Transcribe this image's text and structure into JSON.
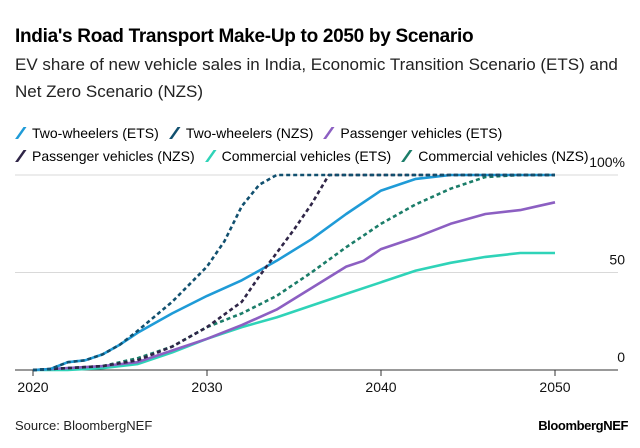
{
  "chart_data": {
    "type": "line",
    "title": "India's Road Transport Make-Up to 2050 by Scenario",
    "subtitle": "EV share of new vehicle sales in India, Economic Transition Scenario (ETS) and Net Zero Scenario (NZS)",
    "xlabel": "",
    "ylabel": "",
    "xlim": [
      2020,
      2053
    ],
    "ylim": [
      0,
      100
    ],
    "x_ticks": [
      "2020",
      "2030",
      "2040",
      "2050"
    ],
    "y_ticks": [
      "0",
      "50",
      "100%"
    ],
    "y_tick_values": [
      0,
      50,
      100
    ],
    "grid": true,
    "legend_position": "top-left",
    "series": [
      {
        "name": "Two-wheelers (ETS)",
        "color": "#1f9bd7",
        "dashed": false,
        "x": [
          2020,
          2021,
          2022,
          2023,
          2024,
          2025,
          2026,
          2028,
          2030,
          2032,
          2033,
          2034,
          2036,
          2038,
          2040,
          2042,
          2044,
          2046,
          2048,
          2050
        ],
        "y": [
          0,
          0.5,
          4,
          5,
          8,
          13,
          19,
          29,
          38,
          46,
          51,
          56,
          67,
          80,
          92,
          98,
          100,
          100,
          100,
          100
        ]
      },
      {
        "name": "Two-wheelers (NZS)",
        "color": "#11506f",
        "dashed": true,
        "x": [
          2020,
          2021,
          2022,
          2023,
          2024,
          2025,
          2026,
          2028,
          2030,
          2031,
          2032,
          2033,
          2034,
          2036,
          2040,
          2045,
          2050
        ],
        "y": [
          0,
          0.5,
          4,
          5,
          8,
          13,
          20,
          35,
          53,
          66,
          84,
          95,
          100,
          100,
          100,
          100,
          100
        ]
      },
      {
        "name": "Passenger vehicles (ETS)",
        "color": "#8c5fc2",
        "dashed": false,
        "x": [
          2020,
          2022,
          2024,
          2026,
          2028,
          2030,
          2032,
          2034,
          2036,
          2038,
          2039,
          2040,
          2042,
          2044,
          2046,
          2048,
          2049,
          2050
        ],
        "y": [
          0,
          1,
          2,
          4,
          10,
          16,
          23,
          31,
          42,
          53,
          56,
          62,
          68,
          75,
          80,
          82,
          84,
          86
        ]
      },
      {
        "name": "Passenger vehicles (NZS)",
        "color": "#2f2547",
        "dashed": true,
        "x": [
          2020,
          2022,
          2024,
          2026,
          2028,
          2030,
          2032,
          2033,
          2034,
          2035,
          2036,
          2037,
          2040,
          2045,
          2050
        ],
        "y": [
          0,
          1,
          2,
          5,
          12,
          22,
          35,
          48,
          60,
          72,
          85,
          100,
          100,
          100,
          100
        ]
      },
      {
        "name": "Commercial vehicles (ETS)",
        "color": "#2fd3b8",
        "dashed": false,
        "x": [
          2020,
          2022,
          2024,
          2026,
          2028,
          2030,
          2032,
          2034,
          2036,
          2038,
          2040,
          2042,
          2044,
          2046,
          2048,
          2050
        ],
        "y": [
          0,
          0,
          1,
          3,
          9,
          16,
          22,
          27,
          33,
          39,
          45,
          51,
          55,
          58,
          60,
          60
        ]
      },
      {
        "name": "Commercial vehicles (NZS)",
        "color": "#1b7d69",
        "dashed": true,
        "x": [
          2020,
          2022,
          2024,
          2026,
          2028,
          2030,
          2032,
          2034,
          2036,
          2038,
          2040,
          2042,
          2044,
          2046,
          2048,
          2050
        ],
        "y": [
          0,
          1,
          2,
          6,
          12,
          22,
          29,
          38,
          50,
          63,
          75,
          85,
          93,
          99,
          100,
          100
        ]
      }
    ]
  },
  "source": "Source: BloombergNEF",
  "logo": "BloombergNEF"
}
